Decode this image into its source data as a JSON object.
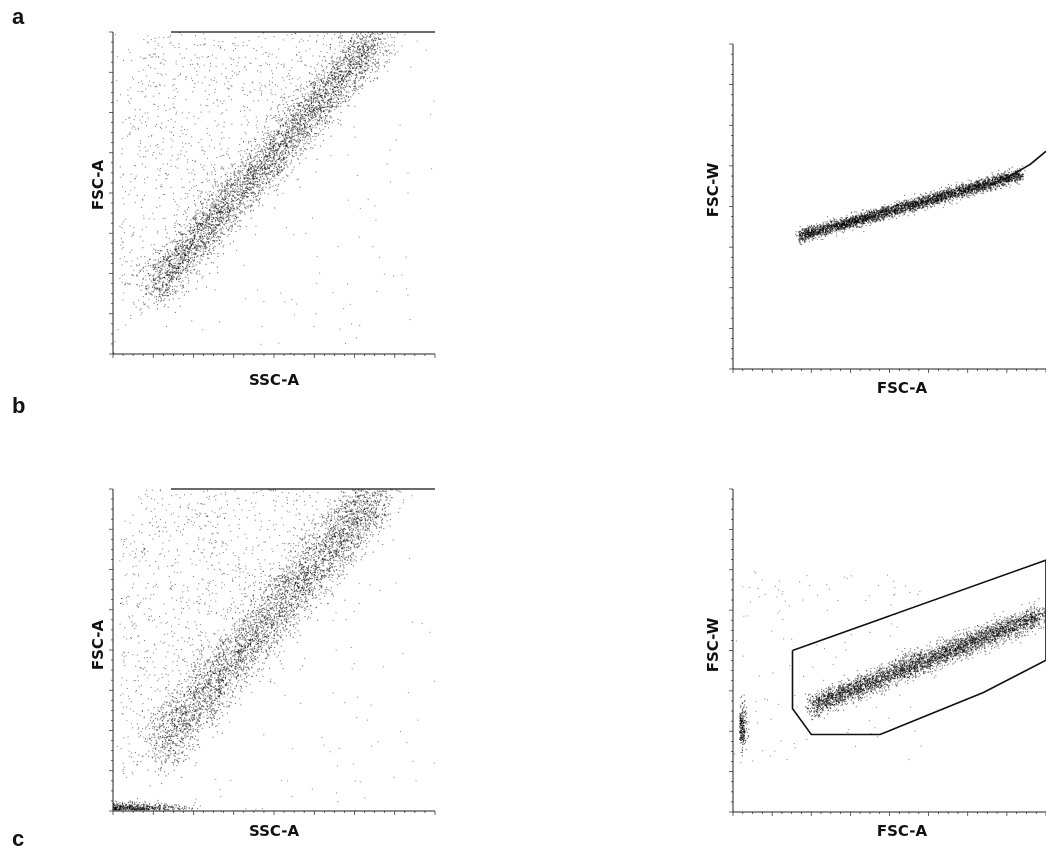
{
  "panels": [
    {
      "letter": "a"
    },
    {
      "letter": "b"
    },
    {
      "letter": "c"
    }
  ],
  "chart_data": [
    {
      "type": "scatter",
      "panel": "a",
      "xlabel": "SSC-A",
      "ylabel": "FSC-A",
      "xlim": [
        0,
        1
      ],
      "ylim": [
        0,
        1
      ],
      "clusters": [
        {
          "from": [
            0.12,
            0.2
          ],
          "to": [
            0.82,
            0.99
          ],
          "spread": 0.04,
          "density": "high"
        },
        {
          "region": "diffuse-upper-left",
          "density": "low"
        }
      ],
      "saturation_line_y": 1.0
    },
    {
      "type": "scatter",
      "panel": "a",
      "xlabel": "FSC-A",
      "ylabel": "FSC-W",
      "xlim": [
        0,
        1
      ],
      "ylim": [
        0,
        1
      ],
      "clusters": [
        {
          "from": [
            0.21,
            0.41
          ],
          "to": [
            0.92,
            0.6
          ],
          "spread": 0.01,
          "density": "high"
        }
      ],
      "gate": [
        [
          0.86,
          0.58
        ],
        [
          0.95,
          0.63
        ],
        [
          1.0,
          0.67
        ]
      ]
    },
    {
      "type": "scatter",
      "panel": "b",
      "xlabel": "SSC-A",
      "ylabel": "FSC-A",
      "xlim": [
        0,
        1
      ],
      "ylim": [
        0,
        1
      ],
      "clusters": [
        {
          "from": [
            0.14,
            0.2
          ],
          "to": [
            0.82,
            0.99
          ],
          "spread": 0.05,
          "density": "high"
        },
        {
          "region": "diffuse-upper-left",
          "density": "low"
        },
        {
          "region": "debris-bottom-left",
          "density": "medium"
        }
      ],
      "saturation_line_y": 1.0
    },
    {
      "type": "scatter",
      "panel": "b",
      "xlabel": "FSC-A",
      "ylabel": "FSC-W",
      "xlim": [
        0,
        1
      ],
      "ylim": [
        0,
        1
      ],
      "clusters": [
        {
          "from": [
            0.25,
            0.33
          ],
          "to": [
            0.98,
            0.61
          ],
          "spread": 0.018,
          "density": "high"
        },
        {
          "region": "debris-left",
          "density": "medium"
        }
      ],
      "gate": [
        [
          0.19,
          0.5
        ],
        [
          0.19,
          0.32
        ],
        [
          0.25,
          0.24
        ],
        [
          0.47,
          0.24
        ],
        [
          0.8,
          0.37
        ],
        [
          1.0,
          0.47
        ],
        [
          1.0,
          0.78
        ],
        [
          0.19,
          0.5
        ]
      ]
    }
  ]
}
